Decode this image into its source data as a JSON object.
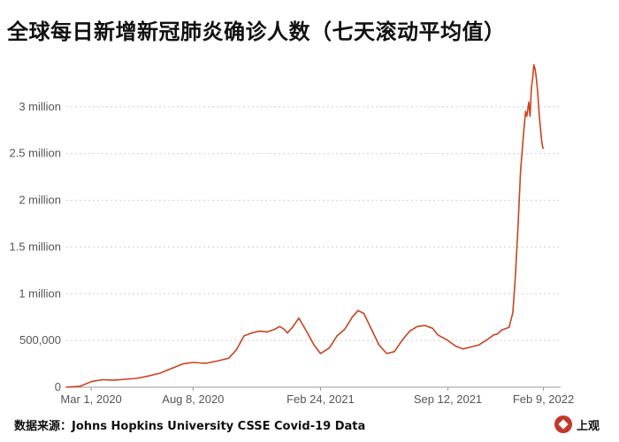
{
  "title": "全球每日新增新冠肺炎确诊人数（七天滚动平均值）",
  "source": "数据来源：Johns Hopkins University CSSE Covid-19 Data",
  "logo_text": "上观",
  "chart_data": {
    "type": "line",
    "title": "全球每日新增新冠肺炎确诊人数（七天滚动平均值）",
    "xlabel": "",
    "ylabel": "",
    "line_color": "#c9431e",
    "ylim": [
      0,
      3500000
    ],
    "yticks": [
      {
        "value": 0,
        "label": "0"
      },
      {
        "value": 500000,
        "label": "500,000"
      },
      {
        "value": 1000000,
        "label": "1 million"
      },
      {
        "value": 1500000,
        "label": "1.5 million"
      },
      {
        "value": 2000000,
        "label": "2 million"
      },
      {
        "value": 2500000,
        "label": "2.5 million"
      },
      {
        "value": 3000000,
        "label": "3 million"
      }
    ],
    "xlim": [
      "2020-01-22",
      "2022-03-08"
    ],
    "xticks": [
      {
        "value": "2020-03-01",
        "label": "Mar 1, 2020"
      },
      {
        "value": "2020-08-08",
        "label": "Aug 8, 2020"
      },
      {
        "value": "2021-02-24",
        "label": "Feb 24, 2021"
      },
      {
        "value": "2021-09-12",
        "label": "Sep 12, 2021"
      },
      {
        "value": "2022-02-09",
        "label": "Feb 9, 2022"
      }
    ],
    "grid": true,
    "x": [
      "2020-01-22",
      "2020-02-13",
      "2020-03-01",
      "2020-03-19",
      "2020-04-06",
      "2020-04-24",
      "2020-05-12",
      "2020-05-30",
      "2020-06-17",
      "2020-07-05",
      "2020-07-23",
      "2020-08-08",
      "2020-08-28",
      "2020-09-15",
      "2020-10-03",
      "2020-10-15",
      "2020-10-27",
      "2020-11-08",
      "2020-11-20",
      "2020-12-02",
      "2020-12-14",
      "2020-12-22",
      "2020-12-29",
      "2021-01-03",
      "2021-01-11",
      "2021-01-21",
      "2021-02-02",
      "2021-02-14",
      "2021-02-24",
      "2021-03-10",
      "2021-03-22",
      "2021-04-03",
      "2021-04-15",
      "2021-04-24",
      "2021-05-03",
      "2021-05-15",
      "2021-05-27",
      "2021-06-08",
      "2021-06-20",
      "2021-07-02",
      "2021-07-14",
      "2021-07-26",
      "2021-08-07",
      "2021-08-19",
      "2021-08-27",
      "2021-09-12",
      "2021-09-24",
      "2021-10-06",
      "2021-10-18",
      "2021-10-30",
      "2021-11-11",
      "2021-11-23",
      "2021-11-29",
      "2021-12-05",
      "2021-12-17",
      "2021-12-23",
      "2021-12-27",
      "2021-12-31",
      "2022-01-04",
      "2022-01-08",
      "2022-01-10",
      "2022-01-12",
      "2022-01-14",
      "2022-01-17",
      "2022-01-19",
      "2022-01-21",
      "2022-01-23",
      "2022-01-25",
      "2022-01-27",
      "2022-01-29",
      "2022-01-31",
      "2022-02-02",
      "2022-02-04",
      "2022-02-06",
      "2022-02-08",
      "2022-02-09"
    ],
    "series": [
      {
        "values": [
          0,
          10000,
          60000,
          80000,
          75000,
          85000,
          95000,
          120000,
          150000,
          200000,
          250000,
          265000,
          255000,
          280000,
          310000,
          400000,
          550000,
          580000,
          600000,
          590000,
          620000,
          650000,
          620000,
          580000,
          640000,
          740000,
          600000,
          450000,
          360000,
          420000,
          550000,
          620000,
          750000,
          820000,
          790000,
          620000,
          450000,
          360000,
          380000,
          500000,
          600000,
          650000,
          660000,
          630000,
          560000,
          500000,
          440000,
          410000,
          430000,
          450000,
          500000,
          560000,
          570000,
          610000,
          640000,
          800000,
          1200000,
          1700000,
          2300000,
          2650000,
          2800000,
          2950000,
          2900000,
          3050000,
          2900000,
          3200000,
          3300000,
          3450000,
          3400000,
          3300000,
          3150000,
          2950000,
          2800000,
          2650000,
          2560000,
          2560000
        ]
      }
    ]
  }
}
